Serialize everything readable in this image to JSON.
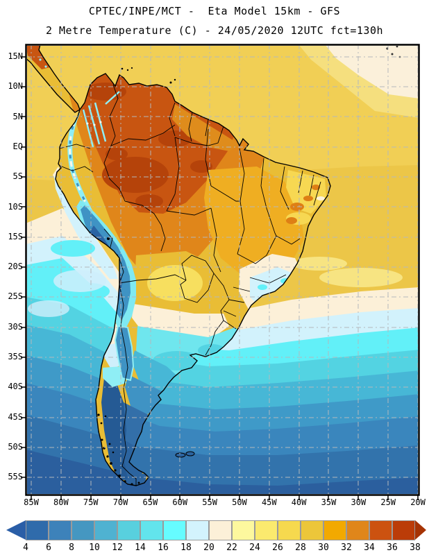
{
  "header": {
    "line1": "CPTEC/INPE/MCT -  Eta Model 15km - GFS",
    "line2": "2 Metre Temperature (C) - 24/05/2020 12UTC fct=130h"
  },
  "map": {
    "lat_labels": [
      "15N",
      "10N",
      "5N",
      "EQ",
      "5S",
      "10S",
      "15S",
      "20S",
      "25S",
      "30S",
      "35S",
      "40S",
      "45S",
      "50S",
      "55S"
    ],
    "lon_labels": [
      "85W",
      "80W",
      "75W",
      "70W",
      "65W",
      "60W",
      "55W",
      "50W",
      "45W",
      "40W",
      "35W",
      "30W",
      "25W",
      "20W"
    ]
  },
  "colorbar": {
    "tick_labels": [
      "4",
      "6",
      "8",
      "10",
      "12",
      "14",
      "16",
      "18",
      "20",
      "22",
      "24",
      "26",
      "28",
      "30",
      "32",
      "34",
      "36",
      "38"
    ],
    "cell_colors": [
      "#2f6bab",
      "#3d82ba",
      "#4597c1",
      "#4fb2d1",
      "#58d0de",
      "#62e4ec",
      "#66fcff",
      "#d3f3fd",
      "#fcf0d8",
      "#fdf89e",
      "#fbea6e",
      "#f6d94e",
      "#ecc63a",
      "#f2a900",
      "#e0861a",
      "#cc5210",
      "#bb3c08"
    ],
    "arrow_left_color": "#2a5ea7",
    "arrow_right_color": "#a63304"
  }
}
